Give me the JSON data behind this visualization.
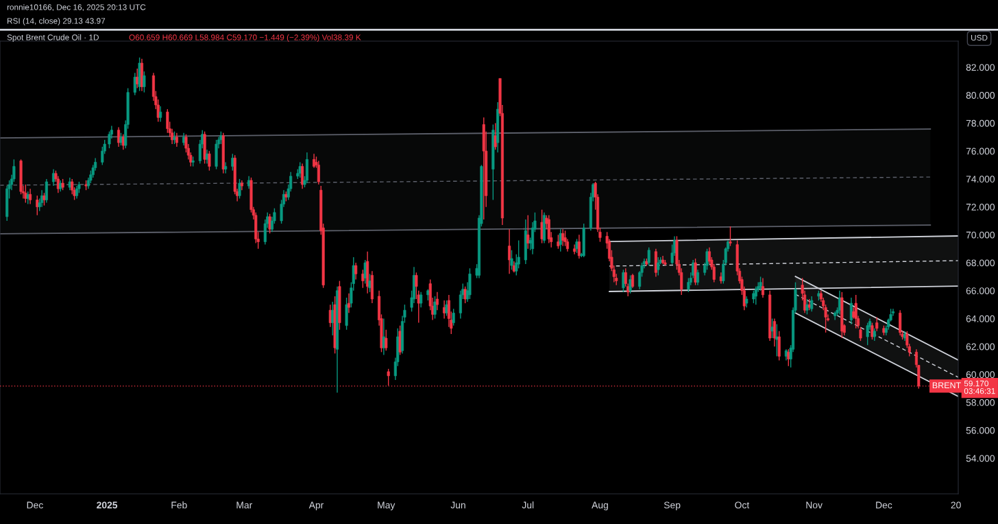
{
  "chart_data": {
    "type": "candlestick",
    "title": "Spot Brent Crude Oil · 1D",
    "subtitle": "O60.659 H60.669 L58.984 C59.170 −1.449 (−2.39%) Vol38.39 K",
    "annotations": [
      "ronnie10166, Dec 16, 2025 20:13 UTC",
      "RSI (14, close) 29.13 43.97",
      "USD",
      {
        "text": "BRENT",
        "x": "2025-12-28",
        "y": 59.17
      }
    ],
    "x": [
      "2024-11-19",
      "2024-11-20",
      "2024-11-21",
      "2024-11-22",
      "2024-11-25",
      "2024-11-26",
      "2024-11-27",
      "2024-11-28",
      "2024-11-29",
      "2024-12-02",
      "2024-12-03",
      "2024-12-04",
      "2024-12-05",
      "2024-12-06",
      "2024-12-09",
      "2024-12-10",
      "2024-12-11",
      "2024-12-12",
      "2024-12-13",
      "2024-12-16",
      "2024-12-17",
      "2024-12-18",
      "2024-12-19",
      "2024-12-20",
      "2024-12-23",
      "2024-12-24",
      "2024-12-25",
      "2024-12-26",
      "2024-12-27",
      "2024-12-30",
      "2024-12-31",
      "2025-01-02",
      "2025-01-03",
      "2025-01-06",
      "2025-01-07",
      "2025-01-08",
      "2025-01-09",
      "2025-01-10",
      "2025-01-13",
      "2025-01-14",
      "2025-01-15",
      "2025-01-16",
      "2025-01-17",
      "2025-01-21",
      "2025-01-22",
      "2025-01-23",
      "2025-01-24",
      "2025-01-27",
      "2025-01-28",
      "2025-01-29",
      "2025-01-30",
      "2025-01-31",
      "2025-02-03",
      "2025-02-04",
      "2025-02-05",
      "2025-02-06",
      "2025-02-07",
      "2025-02-10",
      "2025-02-11",
      "2025-02-12",
      "2025-02-13",
      "2025-02-14",
      "2025-02-17",
      "2025-02-18",
      "2025-02-19",
      "2025-02-20",
      "2025-02-21",
      "2025-02-24",
      "2025-02-25",
      "2025-02-26",
      "2025-02-27",
      "2025-02-28",
      "2025-03-03",
      "2025-03-04",
      "2025-03-05",
      "2025-03-06",
      "2025-03-07",
      "2025-03-10",
      "2025-03-11",
      "2025-03-12",
      "2025-03-13",
      "2025-03-14",
      "2025-03-17",
      "2025-03-18",
      "2025-03-19",
      "2025-03-20",
      "2025-03-21",
      "2025-03-24",
      "2025-03-25",
      "2025-03-26",
      "2025-03-27",
      "2025-03-28",
      "2025-03-31",
      "2025-04-01",
      "2025-04-02",
      "2025-04-03",
      "2025-04-04",
      "2025-04-07",
      "2025-04-08",
      "2025-04-09",
      "2025-04-10",
      "2025-04-11",
      "2025-04-14",
      "2025-04-15",
      "2025-04-16",
      "2025-04-17",
      "2025-04-18",
      "2025-04-21",
      "2025-04-22",
      "2025-04-23",
      "2025-04-24",
      "2025-04-25",
      "2025-04-28",
      "2025-04-29",
      "2025-04-30",
      "2025-05-01",
      "2025-05-02",
      "2025-05-05",
      "2025-05-06",
      "2025-05-07",
      "2025-05-08",
      "2025-05-09",
      "2025-05-12",
      "2025-05-13",
      "2025-05-14",
      "2025-05-15",
      "2025-05-16",
      "2025-05-19",
      "2025-05-20",
      "2025-05-21",
      "2025-05-22",
      "2025-05-23",
      "2025-05-26",
      "2025-05-27",
      "2025-05-28",
      "2025-05-29",
      "2025-05-30",
      "2025-06-02",
      "2025-06-03",
      "2025-06-04",
      "2025-06-05",
      "2025-06-06",
      "2025-06-09",
      "2025-06-10",
      "2025-06-11",
      "2025-06-12",
      "2025-06-13",
      "2025-06-16",
      "2025-06-17",
      "2025-06-18",
      "2025-06-19",
      "2025-06-20",
      "2025-06-23",
      "2025-06-24",
      "2025-06-25",
      "2025-06-26",
      "2025-06-27",
      "2025-06-30",
      "2025-07-01",
      "2025-07-02",
      "2025-07-03",
      "2025-07-04",
      "2025-07-07",
      "2025-07-08",
      "2025-07-09",
      "2025-07-10",
      "2025-07-11",
      "2025-07-14",
      "2025-07-15",
      "2025-07-16",
      "2025-07-17",
      "2025-07-18",
      "2025-07-21",
      "2025-07-22",
      "2025-07-23",
      "2025-07-24",
      "2025-07-25",
      "2025-07-28",
      "2025-07-29",
      "2025-07-30",
      "2025-07-31",
      "2025-08-01",
      "2025-08-04",
      "2025-08-05",
      "2025-08-06",
      "2025-08-07",
      "2025-08-08",
      "2025-08-11",
      "2025-08-12",
      "2025-08-13",
      "2025-08-14",
      "2025-08-15",
      "2025-08-18",
      "2025-08-19",
      "2025-08-20",
      "2025-08-21",
      "2025-08-22",
      "2025-08-25",
      "2025-08-26",
      "2025-08-27",
      "2025-08-28",
      "2025-08-29",
      "2025-09-01",
      "2025-09-02",
      "2025-09-03",
      "2025-09-04",
      "2025-09-05",
      "2025-09-08",
      "2025-09-09",
      "2025-09-10",
      "2025-09-11",
      "2025-09-12",
      "2025-09-15",
      "2025-09-16",
      "2025-09-17",
      "2025-09-18",
      "2025-09-19",
      "2025-09-22",
      "2025-09-23",
      "2025-09-24",
      "2025-09-25",
      "2025-09-26",
      "2025-09-29",
      "2025-09-30",
      "2025-10-01",
      "2025-10-02",
      "2025-10-03",
      "2025-10-06",
      "2025-10-07",
      "2025-10-08",
      "2025-10-09",
      "2025-10-10",
      "2025-10-13",
      "2025-10-14",
      "2025-10-15",
      "2025-10-16",
      "2025-10-17",
      "2025-10-20",
      "2025-10-21",
      "2025-10-22",
      "2025-10-23",
      "2025-10-24",
      "2025-10-27",
      "2025-10-28",
      "2025-10-29",
      "2025-10-30",
      "2025-10-31",
      "2025-11-03",
      "2025-11-04",
      "2025-11-05",
      "2025-11-06",
      "2025-11-07",
      "2025-11-10",
      "2025-11-11",
      "2025-11-12",
      "2025-11-13",
      "2025-11-14",
      "2025-11-17",
      "2025-11-18",
      "2025-11-19",
      "2025-11-20",
      "2025-11-21",
      "2025-11-24",
      "2025-11-25",
      "2025-11-26",
      "2025-11-27",
      "2025-11-28",
      "2025-12-01",
      "2025-12-02",
      "2025-12-03",
      "2025-12-04",
      "2025-12-05",
      "2025-12-08",
      "2025-12-09",
      "2025-12-10",
      "2025-12-11",
      "2025-12-12",
      "2025-12-15",
      "2025-12-16"
    ],
    "ohlc": [
      [
        71.3,
        73.5,
        71.0,
        73.3
      ],
      [
        73.3,
        73.9,
        72.6,
        73.6
      ],
      [
        73.6,
        74.3,
        73.2,
        74.0
      ],
      [
        74.0,
        75.4,
        73.8,
        74.9
      ],
      [
        75.3,
        75.4,
        72.9,
        73.1
      ],
      [
        73.1,
        73.5,
        72.6,
        73.0
      ],
      [
        73.0,
        73.6,
        72.3,
        72.6
      ],
      [
        72.6,
        73.1,
        72.2,
        72.9
      ],
      [
        72.9,
        73.3,
        72.2,
        72.5
      ],
      [
        72.5,
        72.8,
        71.4,
        72.0
      ],
      [
        72.0,
        72.6,
        71.7,
        72.3
      ],
      [
        72.3,
        73.2,
        72.0,
        72.8
      ],
      [
        72.8,
        73.0,
        72.1,
        72.5
      ],
      [
        72.5,
        74.0,
        72.3,
        73.8
      ],
      [
        73.8,
        74.7,
        73.5,
        74.4
      ],
      [
        74.4,
        74.6,
        73.8,
        74.0
      ],
      [
        74.0,
        74.2,
        73.0,
        73.3
      ],
      [
        73.3,
        73.9,
        73.1,
        73.7
      ],
      [
        73.7,
        74.0,
        73.2,
        73.4
      ],
      [
        73.4,
        74.1,
        73.2,
        73.8
      ],
      [
        73.8,
        74.0,
        72.9,
        73.2
      ],
      [
        73.2,
        73.4,
        72.5,
        72.8
      ],
      [
        72.8,
        73.5,
        72.6,
        73.3
      ],
      [
        73.3,
        73.8,
        73.0,
        73.6
      ],
      [
        73.6,
        73.9,
        73.2,
        73.5
      ],
      [
        73.5,
        74.1,
        73.3,
        73.9
      ],
      [
        73.9,
        74.6,
        73.7,
        74.3
      ],
      [
        74.3,
        75.0,
        74.1,
        74.8
      ],
      [
        74.8,
        75.5,
        74.6,
        75.2
      ],
      [
        75.2,
        76.3,
        75.0,
        76.0
      ],
      [
        76.0,
        76.8,
        75.8,
        76.5
      ],
      [
        76.5,
        77.4,
        76.2,
        77.2
      ],
      [
        77.2,
        77.8,
        76.9,
        77.5
      ],
      [
        77.5,
        77.7,
        76.3,
        76.6
      ],
      [
        76.6,
        77.3,
        76.4,
        77.0
      ],
      [
        77.0,
        77.2,
        76.1,
        76.4
      ],
      [
        76.4,
        78.2,
        76.2,
        77.9
      ],
      [
        77.9,
        80.5,
        77.6,
        80.2
      ],
      [
        80.2,
        81.6,
        80.0,
        81.3
      ],
      [
        81.3,
        81.9,
        80.5,
        80.8
      ],
      [
        80.6,
        82.7,
        80.3,
        82.3
      ],
      [
        82.3,
        82.6,
        80.3,
        80.6
      ],
      [
        80.6,
        81.7,
        80.2,
        81.4
      ],
      [
        81.4,
        81.6,
        79.6,
        79.9
      ],
      [
        79.9,
        80.3,
        79.0,
        79.3
      ],
      [
        79.3,
        79.7,
        78.1,
        78.4
      ],
      [
        78.4,
        79.2,
        78.1,
        78.8
      ],
      [
        78.8,
        79.0,
        77.3,
        77.6
      ],
      [
        77.6,
        78.1,
        77.0,
        77.3
      ],
      [
        77.3,
        77.6,
        76.5,
        76.8
      ],
      [
        76.8,
        77.4,
        76.5,
        77.0
      ],
      [
        77.0,
        77.3,
        76.3,
        76.6
      ],
      [
        76.6,
        77.3,
        76.4,
        77.0
      ],
      [
        77.0,
        77.2,
        75.9,
        76.2
      ],
      [
        76.2,
        76.5,
        75.4,
        75.7
      ],
      [
        75.7,
        75.9,
        74.9,
        75.2
      ],
      [
        75.2,
        75.6,
        74.9,
        75.3
      ],
      [
        75.3,
        76.8,
        75.1,
        76.5
      ],
      [
        76.5,
        77.5,
        76.2,
        77.2
      ],
      [
        77.2,
        77.4,
        75.1,
        75.4
      ],
      [
        75.4,
        76.1,
        75.1,
        75.8
      ],
      [
        75.8,
        76.0,
        74.6,
        74.9
      ],
      [
        74.9,
        76.8,
        74.7,
        76.5
      ],
      [
        76.5,
        77.0,
        76.2,
        76.8
      ],
      [
        76.8,
        77.4,
        76.5,
        77.1
      ],
      [
        77.1,
        77.3,
        74.4,
        74.7
      ],
      [
        74.7,
        75.2,
        74.4,
        74.9
      ],
      [
        74.9,
        75.8,
        74.6,
        75.5
      ],
      [
        75.5,
        75.7,
        72.9,
        73.1
      ],
      [
        73.1,
        73.3,
        72.4,
        72.8
      ],
      [
        72.8,
        74.0,
        72.6,
        73.7
      ],
      [
        73.7,
        73.9,
        73.2,
        73.5
      ],
      [
        73.5,
        74.2,
        73.3,
        73.9
      ],
      [
        73.9,
        74.1,
        71.6,
        71.8
      ],
      [
        71.8,
        72.0,
        71.1,
        71.4
      ],
      [
        71.4,
        71.6,
        69.4,
        69.7
      ],
      [
        69.7,
        70.2,
        69.0,
        69.5
      ],
      [
        69.5,
        71.1,
        69.3,
        70.8
      ],
      [
        70.8,
        71.6,
        70.5,
        71.3
      ],
      [
        71.3,
        71.5,
        70.1,
        70.4
      ],
      [
        70.4,
        71.3,
        70.2,
        71.0
      ],
      [
        71.0,
        71.9,
        70.8,
        71.6
      ],
      [
        71.0,
        72.5,
        70.8,
        72.2
      ],
      [
        72.2,
        73.2,
        72.0,
        72.9
      ],
      [
        72.9,
        73.1,
        72.4,
        72.7
      ],
      [
        72.7,
        73.6,
        72.5,
        73.3
      ],
      [
        73.3,
        74.5,
        73.1,
        74.2
      ],
      [
        74.2,
        74.7,
        74.0,
        74.4
      ],
      [
        74.4,
        75.2,
        74.1,
        74.9
      ],
      [
        74.9,
        75.1,
        73.3,
        73.6
      ],
      [
        73.6,
        74.2,
        73.4,
        73.9
      ],
      [
        73.9,
        75.9,
        73.7,
        75.4
      ],
      [
        75.4,
        75.8,
        74.8,
        74.9
      ],
      [
        75.2,
        75.6,
        74.8,
        75.0
      ],
      [
        75.0,
        75.3,
        73.6,
        73.8
      ],
      [
        73.2,
        73.5,
        70.0,
        70.3
      ],
      [
        70.5,
        70.8,
        66.2,
        66.4
      ],
      [
        64.6,
        65.0,
        63.4,
        63.7
      ],
      [
        63.7,
        65.2,
        62.8,
        64.6
      ],
      [
        65.0,
        65.6,
        61.5,
        61.9
      ],
      [
        61.8,
        66.3,
        58.7,
        66.0
      ],
      [
        66.3,
        66.7,
        63.2,
        63.7
      ],
      [
        63.5,
        65.5,
        63.2,
        65.0
      ],
      [
        65.1,
        65.8,
        64.4,
        64.8
      ],
      [
        65.1,
        66.6,
        64.8,
        66.2
      ],
      [
        66.5,
        68.4,
        66.0,
        67.8
      ],
      [
        67.8,
        68.0,
        66.8,
        67.2
      ],
      [
        67.2,
        67.5,
        66.2,
        66.7
      ],
      [
        66.9,
        68.2,
        66.5,
        68.0
      ],
      [
        68.1,
        68.8,
        65.8,
        66.3
      ],
      [
        66.2,
        67.2,
        65.9,
        66.7
      ],
      [
        67.1,
        67.4,
        65.1,
        65.4
      ],
      [
        65.6,
        66.0,
        63.5,
        63.9
      ],
      [
        64.0,
        64.3,
        61.6,
        61.9
      ],
      [
        61.9,
        64.0,
        61.4,
        62.7
      ],
      [
        62.6,
        63.2,
        61.7,
        61.9
      ],
      [
        60.2,
        60.4,
        59.2,
        59.9
      ],
      [
        59.9,
        61.2,
        59.6,
        60.9
      ],
      [
        60.9,
        63.3,
        60.6,
        62.7
      ],
      [
        63.1,
        63.5,
        61.4,
        61.6
      ],
      [
        61.7,
        64.2,
        61.5,
        63.8
      ],
      [
        64.1,
        65.0,
        63.7,
        64.6
      ],
      [
        64.8,
        66.0,
        64.5,
        65.5
      ],
      [
        65.4,
        67.7,
        65.1,
        67.1
      ],
      [
        67.1,
        67.3,
        65.4,
        66.3
      ],
      [
        65.7,
        66.0,
        63.7,
        65.1
      ],
      [
        65.1,
        65.9,
        64.8,
        65.7
      ],
      [
        65.7,
        66.1,
        65.3,
        66.0
      ],
      [
        66.5,
        66.8,
        64.6,
        64.9
      ],
      [
        64.9,
        65.5,
        63.9,
        64.3
      ],
      [
        64.3,
        65.6,
        64.0,
        65.2
      ],
      [
        65.4,
        65.9,
        64.6,
        65.0
      ],
      [
        64.8,
        65.3,
        64.0,
        64.4
      ],
      [
        64.4,
        65.3,
        64.2,
        65.0
      ],
      [
        65.3,
        65.7,
        63.4,
        64.0
      ],
      [
        63.9,
        64.5,
        62.9,
        63.3
      ],
      [
        63.7,
        64.7,
        63.5,
        64.4
      ],
      [
        64.4,
        66.0,
        64.0,
        65.7
      ],
      [
        65.7,
        66.5,
        65.4,
        66.1
      ],
      [
        66.1,
        66.3,
        65.1,
        65.4
      ],
      [
        65.4,
        66.6,
        65.2,
        66.0
      ],
      [
        65.7,
        67.6,
        65.4,
        67.2
      ],
      [
        67.1,
        67.9,
        66.9,
        67.6
      ],
      [
        67.1,
        71.4,
        66.9,
        71.2
      ],
      [
        70.8,
        75.0,
        70.6,
        74.9
      ],
      [
        77.9,
        78.4,
        71.1,
        76.0
      ],
      [
        76.0,
        77.4,
        72.0,
        72.8
      ],
      [
        74.7,
        77.9,
        72.5,
        77.5
      ],
      [
        77.1,
        78.0,
        76.1,
        76.3
      ],
      [
        76.6,
        79.5,
        75.9,
        79.0
      ],
      [
        81.2,
        81.2,
        78.5,
        78.7
      ],
      [
        78.7,
        79.3,
        70.7,
        71.2
      ],
      [
        69.2,
        70.4,
        67.2,
        68.2
      ],
      [
        67.8,
        68.9,
        67.5,
        68.3
      ],
      [
        67.8,
        68.1,
        67.3,
        67.4
      ],
      [
        67.4,
        68.6,
        67.1,
        68.0
      ],
      [
        67.9,
        69.6,
        67.6,
        68.4
      ],
      [
        68.2,
        71.1,
        67.9,
        70.3
      ],
      [
        70.0,
        71.4,
        69.0,
        69.4
      ],
      [
        69.4,
        69.8,
        68.9,
        69.6
      ],
      [
        69.0,
        70.9,
        68.6,
        70.5
      ],
      [
        70.4,
        71.6,
        70.2,
        71.0
      ],
      [
        70.9,
        71.8,
        69.4,
        69.7
      ],
      [
        69.6,
        71.6,
        69.4,
        71.4
      ],
      [
        71.2,
        71.4,
        70.4,
        70.8
      ],
      [
        71.1,
        71.4,
        69.4,
        69.7
      ],
      [
        69.8,
        70.2,
        69.1,
        69.5
      ],
      [
        69.5,
        70.0,
        69.0,
        69.2
      ],
      [
        69.3,
        70.4,
        68.8,
        70.1
      ],
      [
        70.1,
        70.4,
        69.2,
        69.6
      ],
      [
        69.8,
        70.3,
        69.2,
        69.5
      ],
      [
        69.5,
        69.7,
        68.8,
        69.0
      ],
      [
        69.0,
        69.3,
        68.6,
        68.8
      ],
      [
        69.0,
        69.7,
        68.7,
        69.5
      ],
      [
        69.5,
        70.0,
        68.3,
        68.5
      ],
      [
        68.5,
        68.7,
        68.4,
        68.6
      ],
      [
        68.5,
        70.8,
        68.4,
        70.5
      ],
      [
        70.5,
        73.0,
        70.3,
        72.7
      ],
      [
        72.7,
        73.7,
        72.4,
        73.6
      ],
      [
        73.7,
        73.8,
        71.8,
        72.7
      ],
      [
        72.7,
        72.9,
        70.2,
        70.4
      ],
      [
        70.2,
        70.5,
        69.5,
        69.8
      ],
      [
        69.9,
        70.2,
        69.0,
        69.4
      ],
      [
        69.5,
        69.7,
        68.1,
        68.3
      ],
      [
        68.4,
        68.9,
        67.4,
        67.6
      ],
      [
        67.5,
        67.8,
        66.6,
        67.0
      ],
      [
        66.9,
        67.2,
        66.4,
        66.7
      ],
      [
        66.2,
        67.5,
        65.9,
        67.3
      ],
      [
        67.3,
        67.6,
        66.3,
        66.5
      ],
      [
        66.3,
        66.5,
        65.6,
        65.9
      ],
      [
        66.0,
        67.1,
        65.8,
        66.8
      ],
      [
        67.1,
        67.2,
        66.2,
        66.3
      ],
      [
        66.3,
        67.4,
        66.1,
        67.3
      ],
      [
        67.3,
        68.0,
        67.0,
        67.8
      ],
      [
        67.9,
        68.3,
        67.6,
        68.1
      ],
      [
        68.1,
        68.3,
        67.8,
        67.9
      ],
      [
        68.0,
        69.1,
        67.8,
        68.9
      ],
      [
        68.8,
        69.0,
        67.0,
        67.3
      ],
      [
        67.5,
        68.4,
        67.1,
        68.0
      ],
      [
        68.0,
        68.4,
        67.9,
        68.2
      ],
      [
        68.2,
        68.5,
        67.9,
        68.0
      ],
      [
        68.0,
        68.2,
        67.8,
        67.9
      ],
      [
        68.0,
        69.3,
        67.9,
        68.7
      ],
      [
        68.7,
        69.9,
        68.5,
        69.6
      ],
      [
        69.6,
        69.9,
        67.5,
        67.9
      ],
      [
        67.9,
        68.2,
        67.1,
        67.3
      ],
      [
        67.3,
        67.6,
        65.7,
        66.1
      ],
      [
        66.1,
        66.9,
        65.9,
        66.6
      ],
      [
        66.6,
        67.3,
        66.4,
        66.9
      ],
      [
        67.1,
        68.2,
        66.9,
        68.0
      ],
      [
        68.0,
        68.3,
        66.4,
        66.6
      ],
      [
        66.6,
        67.5,
        66.4,
        67.3
      ],
      [
        67.3,
        68.0,
        67.1,
        67.8
      ],
      [
        67.8,
        69.0,
        67.5,
        68.8
      ],
      [
        68.8,
        69.1,
        67.9,
        68.1
      ],
      [
        68.2,
        68.4,
        67.5,
        67.7
      ],
      [
        67.7,
        67.9,
        66.6,
        66.8
      ],
      [
        67.0,
        67.3,
        66.5,
        66.7
      ],
      [
        66.7,
        68.2,
        66.5,
        67.9
      ],
      [
        68.0,
        69.1,
        67.8,
        69.0
      ],
      [
        69.0,
        69.6,
        68.8,
        69.5
      ],
      [
        69.5,
        70.6,
        69.2,
        69.4
      ],
      [
        69.3,
        69.6,
        67.1,
        67.4
      ],
      [
        67.4,
        67.6,
        66.5,
        66.7
      ],
      [
        66.8,
        67.0,
        65.7,
        66.0
      ],
      [
        66.0,
        66.3,
        64.6,
        64.9
      ],
      [
        65.1,
        65.6,
        64.8,
        65.4
      ],
      [
        65.4,
        66.0,
        65.1,
        65.8
      ],
      [
        65.6,
        66.3,
        65.0,
        66.1
      ],
      [
        66.1,
        66.6,
        65.9,
        66.3
      ],
      [
        66.2,
        67.0,
        66.0,
        66.6
      ],
      [
        66.3,
        66.9,
        65.5,
        65.7
      ],
      [
        65.7,
        66.0,
        62.4,
        62.6
      ],
      [
        63.1,
        64.0,
        62.6,
        63.4
      ],
      [
        63.8,
        64.0,
        62.0,
        62.6
      ],
      [
        62.5,
        63.6,
        61.3,
        62.7
      ],
      [
        62.7,
        63.1,
        61.0,
        61.3
      ],
      [
        61.3,
        61.8,
        61.0,
        61.7
      ],
      [
        61.6,
        61.8,
        60.6,
        61.1
      ],
      [
        61.1,
        62.1,
        60.5,
        61.9
      ],
      [
        61.8,
        64.8,
        61.6,
        64.6
      ],
      [
        64.6,
        66.6,
        64.4,
        66.1
      ],
      [
        66.4,
        66.9,
        65.3,
        65.8
      ],
      [
        65.7,
        66.0,
        64.4,
        64.6
      ],
      [
        64.6,
        65.4,
        64.3,
        65.0
      ],
      [
        65.0,
        65.4,
        64.6,
        64.8
      ],
      [
        64.7,
        65.6,
        64.5,
        65.3
      ],
      [
        65.6,
        66.0,
        65.3,
        65.8
      ],
      [
        65.8,
        66.0,
        65.2,
        65.4
      ],
      [
        65.3,
        65.5,
        64.6,
        64.9
      ],
      [
        64.8,
        65.0,
        63.0,
        64.1
      ],
      [
        64.0,
        64.3,
        63.8,
        63.9
      ],
      [
        64.2,
        64.5,
        63.9,
        64.4
      ],
      [
        64.4,
        64.8,
        64.2,
        64.6
      ],
      [
        64.6,
        66.0,
        64.3,
        65.5
      ],
      [
        65.5,
        65.9,
        62.6,
        63.1
      ],
      [
        63.5,
        63.6,
        62.8,
        63.0
      ],
      [
        63.9,
        65.5,
        63.6,
        65.1
      ],
      [
        64.5,
        64.8,
        64.0,
        64.1
      ],
      [
        65.1,
        65.7,
        63.3,
        64.0
      ],
      [
        64.0,
        64.2,
        63.3,
        63.5
      ],
      [
        63.2,
        63.4,
        62.4,
        62.6
      ],
      [
        62.7,
        63.7,
        62.1,
        63.5
      ],
      [
        63.4,
        64.0,
        63.2,
        63.8
      ],
      [
        63.5,
        63.7,
        62.5,
        62.7
      ],
      [
        62.7,
        63.3,
        62.4,
        63.1
      ],
      [
        63.7,
        64.1,
        63.1,
        63.3
      ],
      [
        63.3,
        63.5,
        62.8,
        63.0
      ],
      [
        63.0,
        63.5,
        62.8,
        63.3
      ],
      [
        63.4,
        64.0,
        63.2,
        63.9
      ],
      [
        63.9,
        64.7,
        63.8,
        64.3
      ],
      [
        64.4,
        64.7,
        64.2,
        64.5
      ],
      [
        64.4,
        64.6,
        62.8,
        63.0
      ],
      [
        62.9,
        63.1,
        62.5,
        62.7
      ],
      [
        62.6,
        63.1,
        62.4,
        62.9
      ],
      [
        62.9,
        63.1,
        61.9,
        62.1
      ],
      [
        62.0,
        62.2,
        61.3,
        61.6
      ],
      [
        61.6,
        61.8,
        60.5,
        60.7
      ],
      [
        60.659,
        60.669,
        58.984,
        59.17
      ]
    ],
    "colors": [
      "#089981",
      "#089981",
      "#089981",
      "#089981",
      "#f23645",
      "#f23645",
      "#f23645",
      "#089981",
      "#f23645",
      "#f23645",
      "#089981",
      "#089981",
      "#f23645",
      "#089981",
      "#089981",
      "#f23645",
      "#f23645",
      "#089981",
      "#f23645",
      "#089981",
      "#f23645",
      "#f23645",
      "#089981",
      "#089981",
      "#f23645",
      "#089981",
      "#089981",
      "#089981",
      "#089981",
      "#089981",
      "#089981",
      "#089981",
      "#089981",
      "#f23645",
      "#089981",
      "#f23645",
      "#089981",
      "#089981",
      "#089981",
      "#f23645",
      "#089981",
      "#f23645",
      "#089981",
      "#f23645",
      "#f23645",
      "#f23645",
      "#089981",
      "#f23645",
      "#f23645",
      "#f23645",
      "#089981",
      "#f23645",
      "#089981",
      "#f23645",
      "#f23645",
      "#f23645",
      "#089981",
      "#089981",
      "#089981",
      "#f23645",
      "#089981",
      "#f23645",
      "#089981",
      "#089981",
      "#089981",
      "#f23645",
      "#089981",
      "#089981",
      "#f23645",
      "#f23645",
      "#089981",
      "#f23645",
      "#089981",
      "#f23645",
      "#f23645",
      "#f23645",
      "#f23645",
      "#089981",
      "#089981",
      "#f23645",
      "#089981",
      "#089981",
      "#089981",
      "#089981",
      "#f23645",
      "#089981",
      "#089981",
      "#089981",
      "#089981",
      "#f23645",
      "#089981",
      "#089981",
      "#f23645",
      "#f23645",
      "#f23645",
      "#f23645",
      "#f23645",
      "#f23645",
      "#089981",
      "#f23645",
      "#089981",
      "#f23645",
      "#089981",
      "#f23645",
      "#089981",
      "#089981",
      "#f23645",
      "#f23645",
      "#089981",
      "#f23645",
      "#089981",
      "#f23645",
      "#f23645",
      "#f23645",
      "#089981",
      "#f23645",
      "#f23645",
      "#089981",
      "#089981",
      "#f23645",
      "#089981",
      "#089981",
      "#089981",
      "#089981",
      "#f23645",
      "#f23645",
      "#089981",
      "#089981",
      "#f23645",
      "#f23645",
      "#089981",
      "#f23645",
      "#f23645",
      "#089981",
      "#f23645",
      "#f23645",
      "#089981",
      "#089981",
      "#089981",
      "#f23645",
      "#089981",
      "#089981",
      "#089981",
      "#089981",
      "#089981",
      "#f23645",
      "#f23645",
      "#089981",
      "#f23645",
      "#089981",
      "#f23645",
      "#f23645",
      "#f23645",
      "#089981",
      "#f23645",
      "#089981",
      "#089981",
      "#089981",
      "#f23645",
      "#089981",
      "#089981",
      "#089981",
      "#f23645",
      "#089981",
      "#f23645",
      "#f23645",
      "#f23645",
      "#f23645",
      "#089981",
      "#f23645",
      "#f23645",
      "#f23645",
      "#f23645",
      "#089981",
      "#f23645",
      "#089981",
      "#089981",
      "#089981",
      "#089981",
      "#f23645",
      "#f23645",
      "#f23645",
      "#f23645",
      "#f23645",
      "#f23645",
      "#f23645",
      "#f23645",
      "#089981",
      "#f23645",
      "#f23645",
      "#089981",
      "#f23645",
      "#089981",
      "#089981",
      "#089981",
      "#f23645",
      "#089981",
      "#f23645",
      "#089981",
      "#089981",
      "#f23645",
      "#f23645",
      "#089981",
      "#089981",
      "#f23645",
      "#f23645",
      "#f23645",
      "#089981",
      "#089981",
      "#089981",
      "#f23645",
      "#089981",
      "#089981",
      "#089981",
      "#f23645",
      "#f23645",
      "#f23645",
      "#f23645",
      "#089981",
      "#089981",
      "#089981",
      "#f23645",
      "#f23645",
      "#f23645",
      "#f23645",
      "#f23645",
      "#089981",
      "#089981",
      "#089981",
      "#089981",
      "#089981",
      "#f23645",
      "#f23645",
      "#089981",
      "#f23645",
      "#089981",
      "#f23645",
      "#089981",
      "#f23645",
      "#089981",
      "#089981",
      "#089981",
      "#f23645",
      "#f23645",
      "#089981",
      "#f23645",
      "#089981",
      "#089981",
      "#f23645",
      "#f23645",
      "#f23645",
      "#f23645",
      "#089981",
      "#089981",
      "#089981",
      "#f23645",
      "#f23645",
      "#089981",
      "#f23645",
      "#f23645",
      "#f23645",
      "#f23645",
      "#089981",
      "#089981",
      "#f23645",
      "#089981",
      "#f23645",
      "#f23645",
      "#089981",
      "#089981",
      "#089981",
      "#089981",
      "#f23645",
      "#f23645",
      "#089981",
      "#f23645",
      "#f23645",
      "#f23645",
      "#f23645"
    ],
    "series": [
      {
        "type": "line",
        "color": "#5d606b",
        "line_style": "solid",
        "x": [
          "2024-11-16",
          "2025-12-21"
        ],
        "values": [
          76.94,
          77.58
        ]
      },
      {
        "type": "line",
        "color": "#5d606b",
        "line_style": "solid",
        "x": [
          "2024-11-16",
          "2025-12-21"
        ],
        "values": [
          70.07,
          70.7
        ]
      },
      {
        "type": "line",
        "color": "#5d606b",
        "line_style": "dashed",
        "x": [
          "2024-11-16",
          "2025-12-21"
        ],
        "values": [
          73.55,
          74.14
        ],
        "lower": [
          70.07,
          70.7
        ],
        "upper": [
          76.94,
          77.58
        ]
      },
      {
        "type": "line",
        "color": "#d1d4dc",
        "line_style": "solid",
        "x": [
          "2025-08-05",
          "2026-01-02"
        ],
        "values": [
          69.52,
          69.92
        ]
      },
      {
        "type": "line",
        "color": "#d1d4dc",
        "line_style": "solid",
        "x": [
          "2025-08-05",
          "2026-01-02"
        ],
        "values": [
          65.94,
          66.33
        ]
      },
      {
        "type": "line",
        "color": "#d1d4dc",
        "line_style": "solid",
        "x": [
          "2025-10-24",
          "2026-01-02"
        ],
        "values": [
          67.02,
          61.03
        ]
      },
      {
        "type": "line",
        "color": "#d1d4dc",
        "line_style": "solid",
        "x": [
          "2025-10-24",
          "2026-01-02"
        ],
        "values": [
          64.4,
          58.42
        ]
      },
      {
        "type": "line",
        "color": "#d1d4dc",
        "line_style": "dashed",
        "x": [
          "2025-08-05",
          "2026-01-02"
        ],
        "values": [
          67.76,
          68.15
        ],
        "lower": [
          65.94,
          66.33
        ],
        "upper": [
          69.52,
          69.92
        ]
      },
      {
        "type": "line",
        "color": "#d1d4dc",
        "line_style": "dashed",
        "x": [
          "2025-10-24",
          "2026-01-02"
        ],
        "values": [
          65.74,
          59.8
        ],
        "lower": [
          64.4,
          58.42
        ],
        "upper": [
          67.02,
          61.03
        ]
      }
    ],
    "ref_lines": [
      {
        "axis": "y",
        "value": 59.17,
        "label": "59.170\n03:46:31",
        "color": "#f23645",
        "line_style": "dotted"
      }
    ],
    "xlim": [
      "2024-11-16",
      "2026-01-02"
    ],
    "xticks": [
      {
        "value": "2024-12-01",
        "label": "Dec"
      },
      {
        "value": "2025-01-01",
        "label": "2025"
      },
      {
        "value": "2025-02-01",
        "label": "Feb"
      },
      {
        "value": "2025-03-01",
        "label": "Mar"
      },
      {
        "value": "2025-04-01",
        "label": "Apr"
      },
      {
        "value": "2025-05-01",
        "label": "May"
      },
      {
        "value": "2025-06-01",
        "label": "Jun"
      },
      {
        "value": "2025-07-01",
        "label": "Jul"
      },
      {
        "value": "2025-08-01",
        "label": "Aug"
      },
      {
        "value": "2025-09-01",
        "label": "Sep"
      },
      {
        "value": "2025-10-01",
        "label": "Oct"
      },
      {
        "value": "2025-11-01",
        "label": "Nov"
      },
      {
        "value": "2025-12-01",
        "label": "Dec"
      },
      {
        "value": "2026-01-01",
        "label": "20"
      }
    ],
    "ylim": [
      51.45,
      83.87
    ],
    "yticks": [
      {
        "value": 54,
        "label": "54.000"
      },
      {
        "value": 56,
        "label": "56.000"
      },
      {
        "value": 58,
        "label": "58.000"
      },
      {
        "value": 60,
        "label": "60.000"
      },
      {
        "value": 62,
        "label": "62.000"
      },
      {
        "value": 64,
        "label": "64.000"
      },
      {
        "value": 66,
        "label": "66.000"
      },
      {
        "value": 68,
        "label": "68.000"
      },
      {
        "value": 70,
        "label": "70.000"
      },
      {
        "value": 72,
        "label": "72.000"
      },
      {
        "value": 74,
        "label": "74.000"
      },
      {
        "value": 76,
        "label": "76.000"
      },
      {
        "value": 78,
        "label": "78.000"
      },
      {
        "value": 80,
        "label": "80.000"
      },
      {
        "value": 82,
        "label": "82.000"
      }
    ],
    "grid": false,
    "legend": false
  }
}
